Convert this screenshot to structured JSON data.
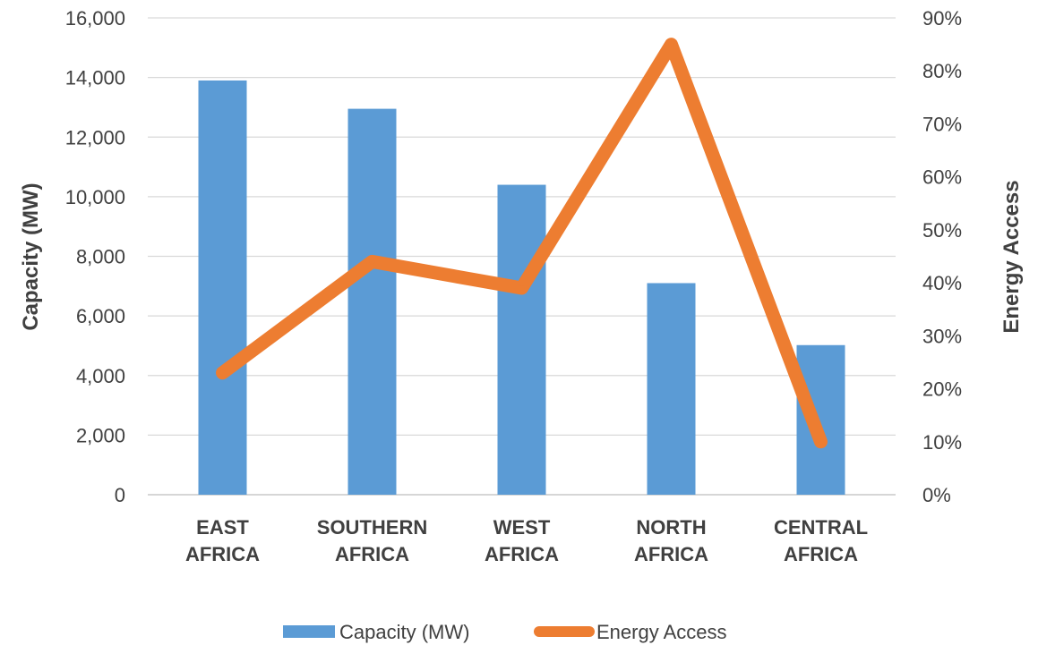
{
  "chart_data": {
    "type": "bar",
    "categories": [
      [
        "EAST",
        "AFRICA"
      ],
      [
        "SOUTHERN",
        "AFRICA"
      ],
      [
        "WEST",
        "AFRICA"
      ],
      [
        "NORTH",
        "AFRICA"
      ],
      [
        "CENTRAL",
        "AFRICA"
      ]
    ],
    "series": [
      {
        "name": "Capacity (MW)",
        "type": "bar",
        "axis": "left",
        "color": "#5B9BD5",
        "values": [
          13900,
          12950,
          10400,
          7100,
          5020
        ]
      },
      {
        "name": "Energy Access",
        "type": "line",
        "axis": "right",
        "color": "#ED7D31",
        "values": [
          0.23,
          0.44,
          0.39,
          0.85,
          0.1
        ]
      }
    ],
    "ylabel": "Capacity (MW)",
    "y2label": "Energy Access",
    "ylim": [
      0,
      16000
    ],
    "y2lim": [
      0,
      0.9
    ],
    "yticks": [
      "0",
      "2,000",
      "4,000",
      "6,000",
      "8,000",
      "10,000",
      "12,000",
      "14,000",
      "16,000"
    ],
    "y2ticks": [
      "0%",
      "10%",
      "20%",
      "30%",
      "40%",
      "50%",
      "60%",
      "70%",
      "80%",
      "90%"
    ],
    "grid": true,
    "legend": "bottom"
  }
}
